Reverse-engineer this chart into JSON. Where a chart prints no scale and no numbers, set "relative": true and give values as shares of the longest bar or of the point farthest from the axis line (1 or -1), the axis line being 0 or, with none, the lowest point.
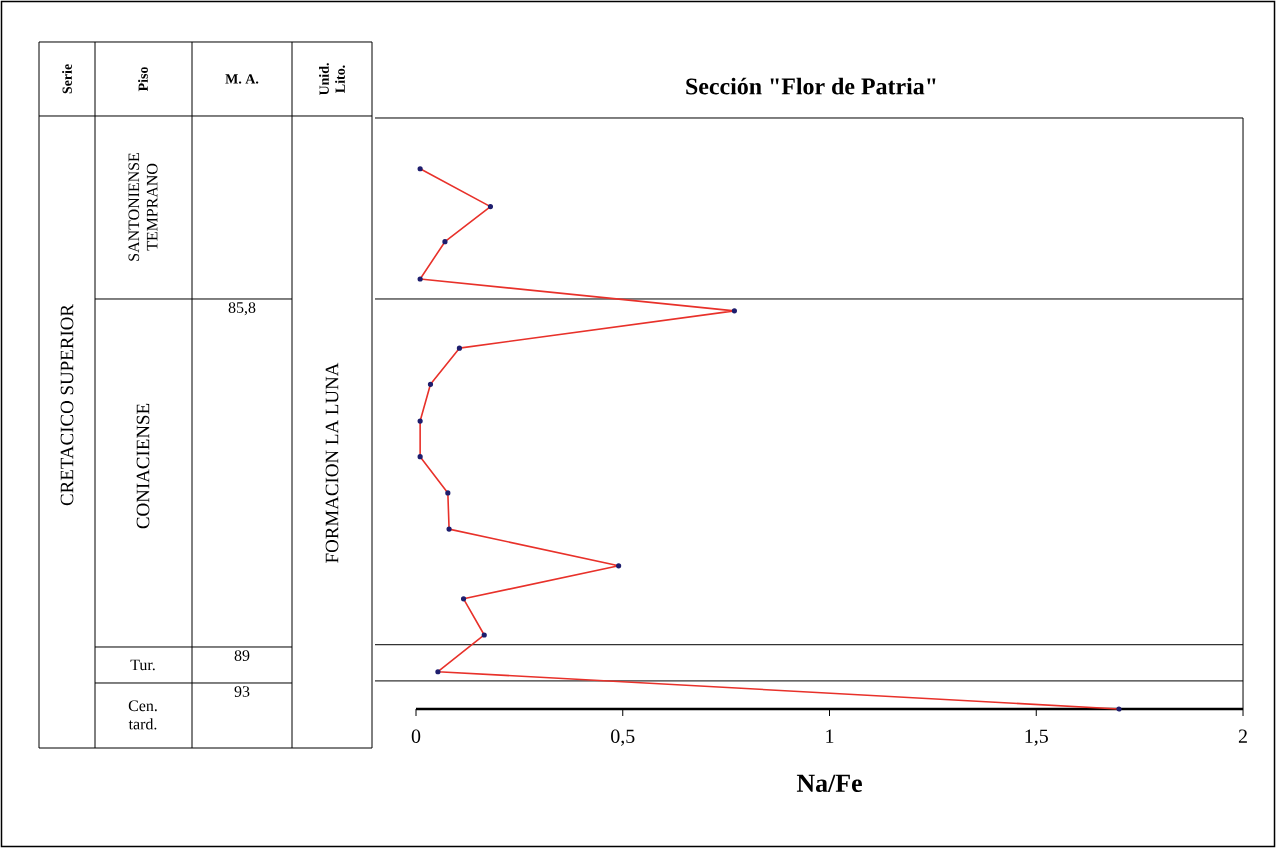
{
  "chart_data": {
    "type": "line",
    "title": "Sección \"Flor de Patria\"",
    "xlabel": "Na/Fe",
    "x": [
      0.01,
      0.18,
      0.07,
      0.01,
      0.77,
      0.105,
      0.035,
      0.01,
      0.01,
      0.077,
      0.08,
      0.49,
      0.115,
      0.165,
      0.053,
      1.7
    ],
    "values": [
      1.0,
      0.93,
      0.865,
      0.796,
      0.737,
      0.668,
      0.601,
      0.533,
      0.467,
      0.4,
      0.333,
      0.265,
      0.204,
      0.137,
      0.069,
      0.0
    ],
    "relative": true,
    "color": "#e8312a",
    "marker": "circle",
    "line_style": "solid",
    "tick_labels": "x",
    "xlim": [
      0,
      2
    ],
    "xticks": [
      0,
      {
        "value": 0.5,
        "label": "0,5"
      },
      1,
      {
        "value": 1.5,
        "label": "1,5"
      },
      2
    ],
    "ref_lines": [
      {
        "axis": "y",
        "value": 0.759,
        "color": "#000000"
      },
      {
        "axis": "y",
        "value": 0.119,
        "color": "#000000"
      },
      {
        "axis": "y",
        "value": 0.052,
        "color": "#000000"
      }
    ],
    "annotations": [
      "Serie",
      "Piso",
      "M. A.",
      "Unid. Lito.",
      "CRETACICO SUPERIOR",
      "SANTONIENSE TEMPRANO",
      "CONIACIENSE",
      "85,8",
      "Tur.",
      "89",
      "Cen. tard.",
      "93",
      "FORMACION LA LUNA"
    ]
  }
}
